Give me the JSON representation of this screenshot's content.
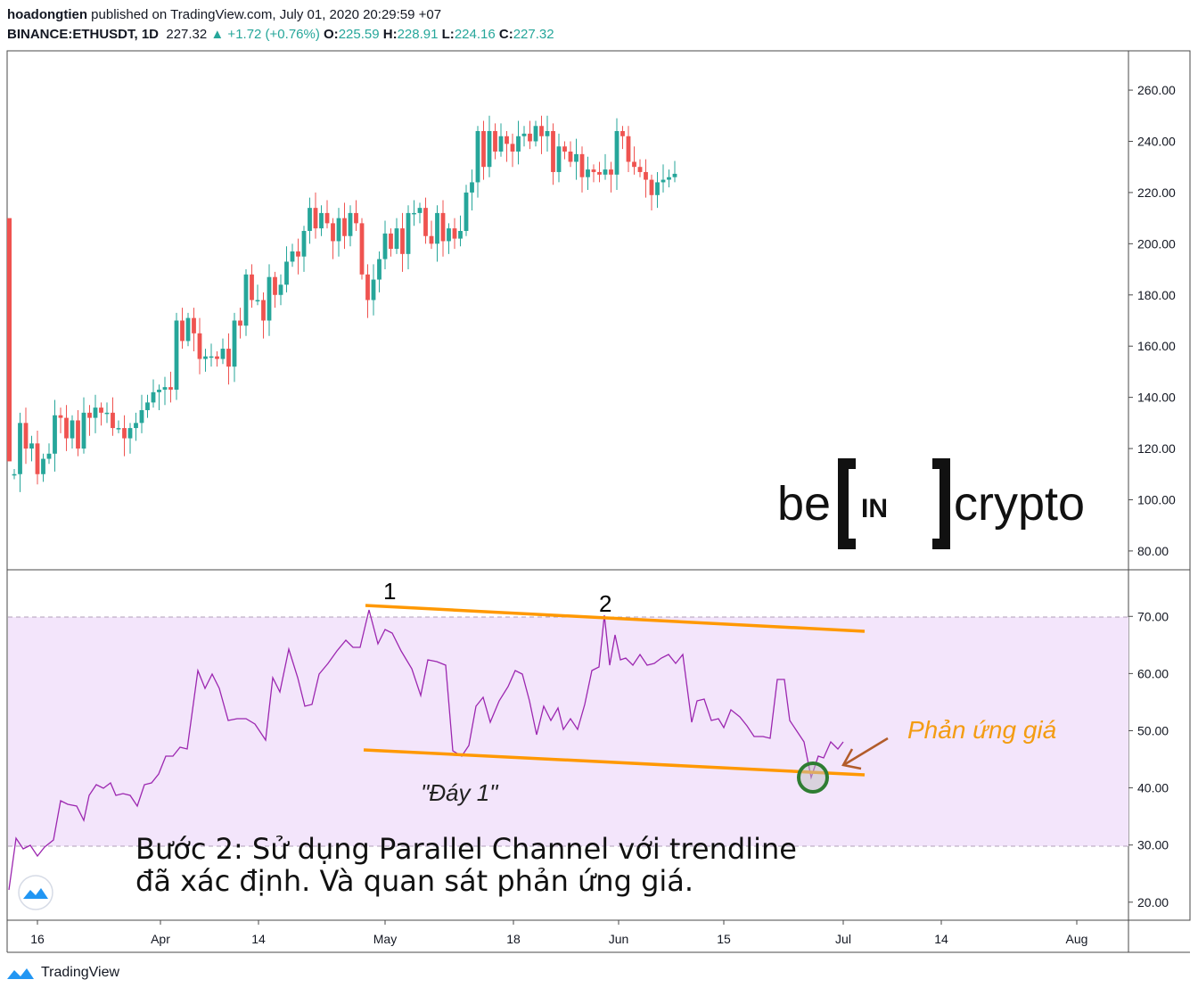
{
  "header": {
    "author": "hoadongtien",
    "published": "published on TradingView.com, July 01, 2020 20:29:59 +07",
    "symbol": "BINANCE:ETHUSDT, 1D",
    "last": "227.32",
    "change": "▲ +1.72 (+0.76%)",
    "o_label": "O:",
    "o_val": "225.59",
    "h_label": "H:",
    "h_val": "228.91",
    "l_label": "L:",
    "l_val": "224.16",
    "c_label": "C:",
    "c_val": "227.32"
  },
  "watermark": {
    "left": "be",
    "mid": "IN",
    "right": "crypto"
  },
  "annotations": {
    "peak1": "1",
    "peak2": "2",
    "bottom": "\"Đáy 1\"",
    "reaction": "Phản ứng giá",
    "step_line1": "Bước 2: Sử dụng Parallel Channel với trendline",
    "step_line2": "đã xác định. Và quan sát phản ứng giá."
  },
  "footer": {
    "brand": "TradingView"
  },
  "colors": {
    "up": "#26a69a",
    "down": "#ef5350",
    "rsi": "#9c27b0",
    "channel": "#ff9800",
    "band": "#f3e5fb",
    "text_orange": "#f39c12"
  },
  "chart_data": [
    {
      "type": "candlestick",
      "x_tick_labels": [
        "16",
        "Apr",
        "14",
        "May",
        "18",
        "Jun",
        "15",
        "Jul",
        "14",
        "Aug"
      ],
      "y_tick_labels": [
        "260.00",
        "240.00",
        "220.00",
        "200.00",
        "180.00",
        "160.00",
        "140.00",
        "120.00",
        "100.00",
        "80.00"
      ],
      "ylim": [
        73,
        275
      ],
      "closes": [
        110,
        130,
        120,
        122,
        110,
        116,
        118,
        133,
        132,
        124,
        131,
        120,
        134,
        132,
        136,
        134,
        134,
        128,
        128,
        124,
        128,
        130,
        135,
        138,
        142,
        143,
        144,
        143,
        170,
        162,
        171,
        165,
        155,
        156,
        156,
        155,
        159,
        152,
        170,
        168,
        188,
        178,
        178,
        170,
        187,
        180,
        184,
        193,
        197,
        195,
        205,
        214,
        206,
        212,
        208,
        201,
        210,
        203,
        212,
        208,
        188,
        178,
        186,
        194,
        204,
        198,
        206,
        196,
        212,
        212,
        214,
        203,
        200,
        212,
        201,
        206,
        202,
        205,
        220,
        224,
        244,
        230,
        244,
        236,
        242,
        239,
        236,
        242,
        243,
        240,
        246,
        242,
        244,
        228,
        238,
        236,
        232,
        235,
        226,
        229,
        228,
        227,
        229,
        227,
        244,
        242,
        232,
        230,
        228,
        225,
        219,
        224,
        225,
        226,
        227.32
      ],
      "rsi": {
        "ylim": [
          17,
          78
        ],
        "y_tick_labels": [
          "70.00",
          "60.00",
          "50.00",
          "40.00",
          "30.00",
          "20.00"
        ],
        "band": [
          30,
          70
        ]
      }
    }
  ]
}
